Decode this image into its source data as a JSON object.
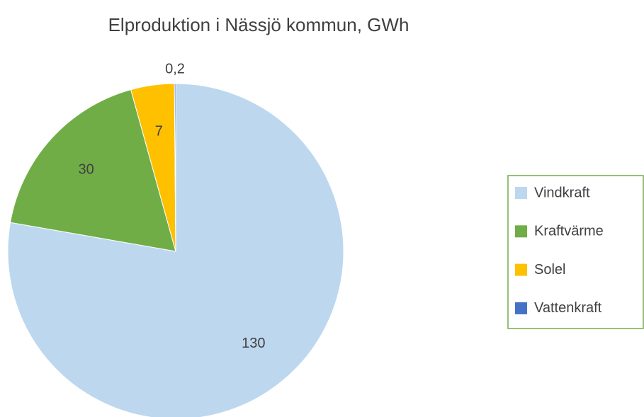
{
  "chart_data": {
    "type": "pie",
    "title": "Elproduktion i Nässjö kommun, GWh",
    "categories": [
      "Vindkraft",
      "Kraftvärme",
      "Solel",
      "Vattenkraft"
    ],
    "values": [
      130,
      30,
      7,
      0.2
    ],
    "value_labels": [
      "130",
      "30",
      "7",
      "0,2"
    ],
    "colors": [
      "#bdd7ee",
      "#70ad47",
      "#ffc000",
      "#4472c4"
    ],
    "legend": "right"
  }
}
